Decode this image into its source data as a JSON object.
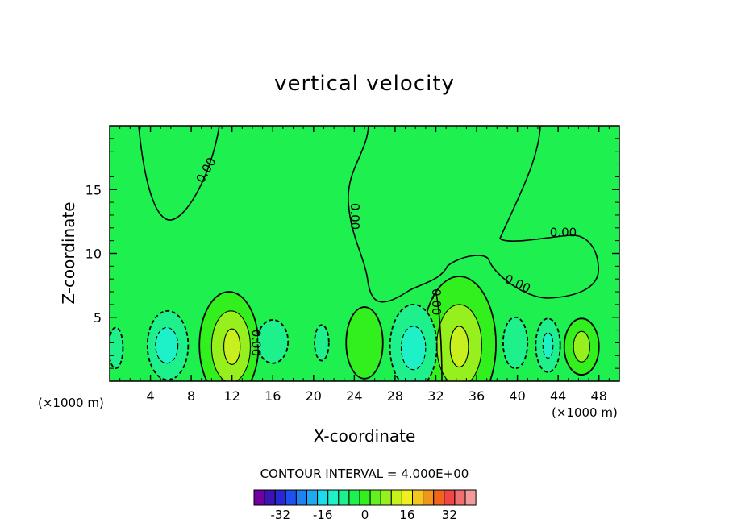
{
  "chart_data": {
    "type": "contour",
    "title": "vertical velocity",
    "xlabel": "X-coordinate",
    "ylabel": "Z-coordinate",
    "x_unit_left": "(×1000 m)",
    "x_unit_right": "(×1000 m)",
    "xlim": [
      0,
      50
    ],
    "ylim": [
      0,
      20
    ],
    "x_ticks": [
      4,
      8,
      12,
      16,
      20,
      24,
      28,
      32,
      36,
      40,
      44,
      48
    ],
    "y_ticks": [
      5,
      10,
      15
    ],
    "contour_interval_label": "CONTOUR INTERVAL = 4.000E+00",
    "contour_labels": [
      {
        "text": "0.00",
        "x": 9.5,
        "y": 16.5,
        "rot": -60
      },
      {
        "text": "0.00",
        "x": 24.0,
        "y": 12.9,
        "rot": 90
      },
      {
        "text": "0.00",
        "x": 44.5,
        "y": 11.6,
        "rot": 0
      },
      {
        "text": "0.00",
        "x": 40.0,
        "y": 7.6,
        "rot": 25
      },
      {
        "text": "0.00",
        "x": 32.0,
        "y": 6.2,
        "rot": 90
      },
      {
        "text": "0.00",
        "x": 14.3,
        "y": 3.0,
        "rot": 90
      }
    ],
    "colorbar": {
      "labels": [
        "-32",
        "-16",
        "0",
        "16",
        "32"
      ],
      "colors": [
        "#7000a0",
        "#3c14b4",
        "#2828d2",
        "#1e50f0",
        "#1e82f0",
        "#1eaaf0",
        "#1edcf0",
        "#1ef0c8",
        "#1ef08c",
        "#1ef050",
        "#32f01e",
        "#64f01e",
        "#96f01e",
        "#c8f01e",
        "#f0f01e",
        "#f0c81e",
        "#f0961e",
        "#f0641e",
        "#f04646",
        "#f07070",
        "#f49a9a"
      ]
    },
    "levels_colors": {
      "neg8": "#1ef0c8",
      "neg4": "#1ef08c",
      "zero": "#1ef050",
      "pos4": "#32f01e",
      "pos8": "#96f01e",
      "pos12": "#c8f01e"
    },
    "regions": [
      {
        "level": "pos4",
        "x": 11.7,
        "y": 2.8,
        "rx": 2.9,
        "ry": 4.2
      },
      {
        "level": "pos8",
        "x": 11.9,
        "y": 2.7,
        "rx": 1.9,
        "ry": 2.8
      },
      {
        "level": "pos12",
        "x": 12.0,
        "y": 2.7,
        "rx": 0.8,
        "ry": 1.4
      },
      {
        "level": "pos4",
        "x": 34.3,
        "y": 2.9,
        "rx": 3.6,
        "ry": 5.3
      },
      {
        "level": "pos8",
        "x": 34.3,
        "y": 2.8,
        "rx": 2.2,
        "ry": 3.2
      },
      {
        "level": "pos12",
        "x": 34.3,
        "y": 2.7,
        "rx": 0.9,
        "ry": 1.6
      },
      {
        "level": "pos4",
        "x": 46.3,
        "y": 2.7,
        "rx": 1.7,
        "ry": 2.2
      },
      {
        "level": "pos8",
        "x": 46.3,
        "y": 2.7,
        "rx": 0.8,
        "ry": 1.2
      },
      {
        "level": "pos4",
        "x": 25.0,
        "y": 3.0,
        "rx": 1.8,
        "ry": 2.8
      },
      {
        "level": "neg4",
        "x": 5.7,
        "y": 2.8,
        "rx": 2.0,
        "ry": 2.7
      },
      {
        "level": "neg8",
        "x": 5.6,
        "y": 2.8,
        "rx": 1.1,
        "ry": 1.4
      },
      {
        "level": "neg4",
        "x": 16.0,
        "y": 3.1,
        "rx": 1.5,
        "ry": 1.7
      },
      {
        "level": "neg4",
        "x": 29.8,
        "y": 2.7,
        "rx": 2.3,
        "ry": 3.3
      },
      {
        "level": "neg8",
        "x": 29.8,
        "y": 2.6,
        "rx": 1.2,
        "ry": 1.7
      },
      {
        "level": "neg4",
        "x": 39.8,
        "y": 3.0,
        "rx": 1.2,
        "ry": 2.0
      },
      {
        "level": "neg4",
        "x": 43.0,
        "y": 2.8,
        "rx": 1.2,
        "ry": 2.1
      },
      {
        "level": "neg8",
        "x": 43.0,
        "y": 2.8,
        "rx": 0.5,
        "ry": 1.0
      },
      {
        "level": "neg4",
        "x": 20.8,
        "y": 3.0,
        "rx": 0.7,
        "ry": 1.4
      },
      {
        "level": "neg4",
        "x": 0.6,
        "y": 2.6,
        "rx": 0.7,
        "ry": 1.6
      }
    ]
  }
}
